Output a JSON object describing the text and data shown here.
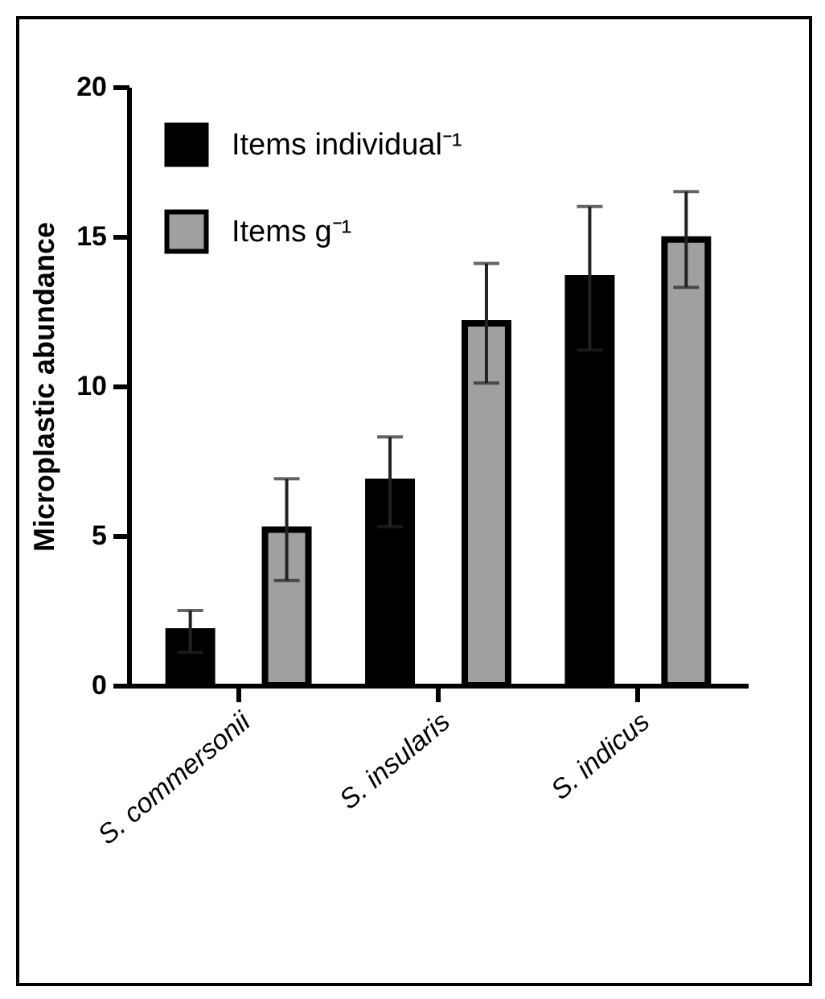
{
  "chart_data": {
    "type": "bar",
    "ylabel": "Microplastic abundance",
    "categories": [
      "S. commersonii",
      "S. insularis",
      "S. indicus"
    ],
    "series": [
      {
        "name": "Items individual⁻¹",
        "color": "#000000",
        "values": [
          1.8,
          6.8,
          13.6
        ],
        "errors": [
          0.7,
          1.5,
          2.4
        ]
      },
      {
        "name": "Items g⁻¹",
        "color": "#a0a0a0",
        "values": [
          5.2,
          12.1,
          14.9
        ],
        "errors": [
          1.7,
          2.0,
          1.6
        ]
      }
    ],
    "ylim": [
      0,
      20
    ],
    "yticks": [
      0,
      5,
      10,
      15,
      20
    ],
    "grid": false,
    "legend": "top left"
  }
}
